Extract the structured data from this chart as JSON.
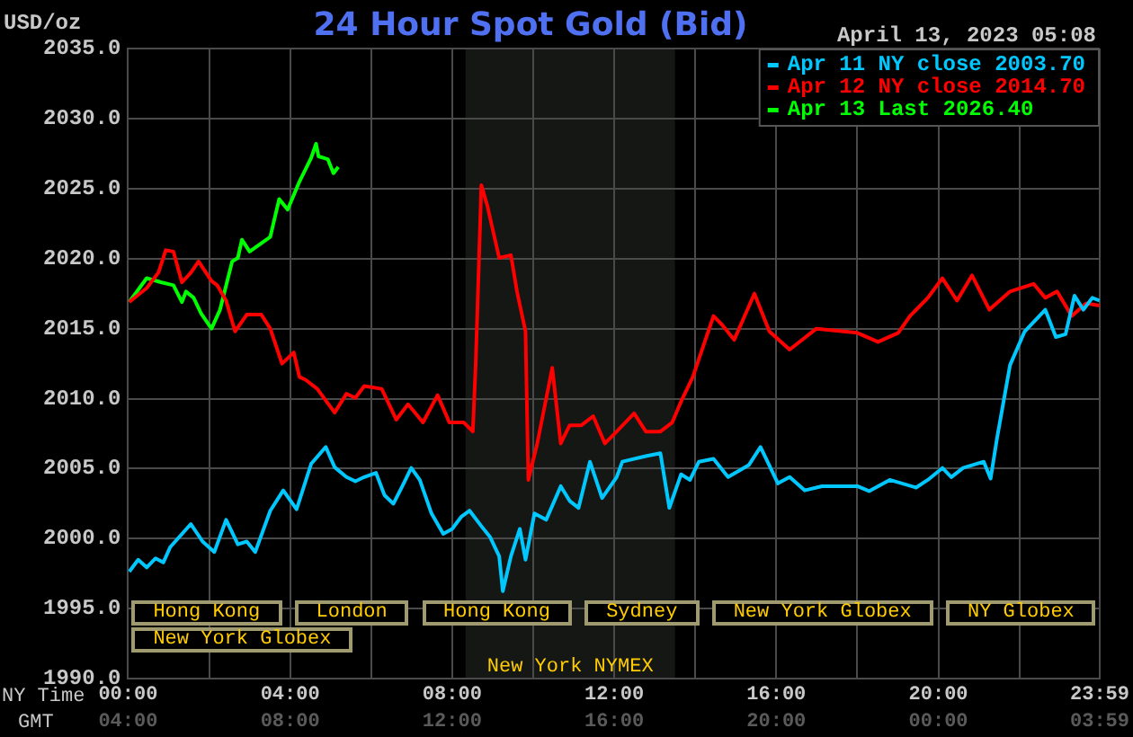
{
  "chart_data": {
    "type": "line",
    "title": "24 Hour Spot Gold (Bid)",
    "subtitle": "April 13, 2023 05:08",
    "ylabel": "USD/oz",
    "xlabel": "NY Time",
    "x2label": "GMT",
    "xlim": [
      0,
      23.983
    ],
    "ylim": [
      1990,
      2035
    ],
    "xticks": [
      {
        "value": 0,
        "label": "00:00"
      },
      {
        "value": 2,
        "label": null
      },
      {
        "value": 4,
        "label": "04:00"
      },
      {
        "value": 6,
        "label": null
      },
      {
        "value": 8,
        "label": "08:00"
      },
      {
        "value": 10,
        "label": null
      },
      {
        "value": 12,
        "label": "12:00"
      },
      {
        "value": 14,
        "label": null
      },
      {
        "value": 16,
        "label": "16:00"
      },
      {
        "value": 18,
        "label": null
      },
      {
        "value": 20,
        "label": "20:00"
      },
      {
        "value": 22,
        "label": null
      },
      {
        "value": 23.983,
        "label": "23:59"
      }
    ],
    "x2lim": [
      "2023-04-13T04:00",
      "2023-04-14T03:59"
    ],
    "x2ticks": [
      {
        "value": "2023-04-13T04:00",
        "label": "04:00"
      },
      {
        "value": "2023-04-13T08:00",
        "label": "08:00"
      },
      {
        "value": "2023-04-13T12:00",
        "label": "12:00"
      },
      {
        "value": "2023-04-13T16:00",
        "label": "16:00"
      },
      {
        "value": "2023-04-13T20:00",
        "label": "20:00"
      },
      {
        "value": "2023-04-14T00:00",
        "label": "00:00"
      },
      {
        "value": "2023-04-14T03:59",
        "label": "03:59"
      }
    ],
    "yticks": [
      {
        "value": 1990,
        "label": "1990.0"
      },
      {
        "value": 1995,
        "label": "1995.0"
      },
      {
        "value": 2000,
        "label": "2000.0"
      },
      {
        "value": 2005,
        "label": "2005.0"
      },
      {
        "value": 2010,
        "label": "2010.0"
      },
      {
        "value": 2015,
        "label": "2015.0"
      },
      {
        "value": 2020,
        "label": "2020.0"
      },
      {
        "value": 2025,
        "label": "2025.0"
      },
      {
        "value": 2030,
        "label": "2030.0"
      },
      {
        "value": 2035,
        "label": "2035.0"
      }
    ],
    "grid": true,
    "legend": "top right",
    "marker": "none",
    "line_style": "solid",
    "bands": [
      {
        "axis": "x",
        "from": 8.33,
        "to": 13.5,
        "label": "New York NYMEX",
        "color": "#141714"
      }
    ],
    "annotations": [
      "Hong Kong",
      "London",
      "Hong Kong",
      "Sydney",
      "New York Globex",
      "NY Globex",
      "New York Globex"
    ],
    "series": [
      {
        "name": "Apr 11 NY close 2003.70",
        "color": "#00c8ff",
        "x": [
          0.03,
          0.25,
          0.46,
          0.68,
          0.87,
          1.04,
          1.55,
          1.84,
          2.13,
          2.42,
          2.71,
          2.93,
          3.14,
          3.51,
          3.83,
          4.16,
          4.52,
          4.88,
          5.1,
          5.39,
          5.61,
          5.83,
          6.12,
          6.33,
          6.55,
          6.77,
          6.99,
          7.2,
          7.49,
          7.78,
          8.0,
          8.22,
          8.43,
          8.72,
          8.94,
          9.16,
          9.25,
          9.45,
          9.67,
          9.81,
          10.03,
          10.32,
          10.68,
          10.9,
          11.12,
          11.4,
          11.7,
          12.06,
          12.2,
          12.78,
          13.14,
          13.36,
          13.65,
          13.87,
          14.09,
          14.45,
          14.81,
          15.32,
          15.61,
          16.04,
          16.33,
          16.7,
          17.13,
          18.0,
          18.29,
          18.8,
          19.45,
          19.74,
          20.1,
          20.32,
          20.61,
          21.12,
          21.29,
          21.45,
          21.77,
          22.13,
          22.64,
          22.9,
          23.14,
          23.36,
          23.58,
          23.8,
          23.98
        ],
        "values": [
          1997.65,
          1998.5,
          1997.95,
          1998.6,
          1998.3,
          1999.4,
          2001.05,
          1999.8,
          1999.05,
          2001.35,
          1999.6,
          1999.8,
          1999.05,
          2002.0,
          2003.45,
          2002.1,
          2005.35,
          2006.55,
          2005.1,
          2004.4,
          2004.1,
          2004.4,
          2004.7,
          2003.1,
          2002.5,
          2003.75,
          2005.05,
          2004.2,
          2001.8,
          2000.35,
          2000.7,
          2001.55,
          2002.0,
          2000.9,
          2000.1,
          1998.75,
          1996.25,
          1998.75,
          2000.7,
          1998.5,
          2001.8,
          2001.35,
          2003.75,
          2002.7,
          2002.2,
          2005.5,
          2002.9,
          2004.4,
          2005.5,
          2005.9,
          2006.1,
          2002.2,
          2004.6,
          2004.2,
          2005.5,
          2005.7,
          2004.4,
          2005.25,
          2006.55,
          2003.95,
          2004.4,
          2003.45,
          2003.75,
          2003.75,
          2003.4,
          2004.2,
          2003.65,
          2004.2,
          2005.05,
          2004.4,
          2005.05,
          2005.5,
          2004.3,
          2007.2,
          2012.4,
          2014.8,
          2016.35,
          2014.4,
          2014.6,
          2017.35,
          2016.35,
          2017.2,
          2017.0
        ]
      },
      {
        "name": "Apr 12 NY close 2014.70",
        "color": "#ff0000",
        "x": [
          0.03,
          0.46,
          0.75,
          0.93,
          1.12,
          1.33,
          1.55,
          1.74,
          2.06,
          2.2,
          2.42,
          2.64,
          2.93,
          3.29,
          3.51,
          3.8,
          4.09,
          4.23,
          4.38,
          4.67,
          5.1,
          5.39,
          5.61,
          5.83,
          6.26,
          6.62,
          6.91,
          7.28,
          7.64,
          7.93,
          8.29,
          8.51,
          8.58,
          8.72,
          8.87,
          9.16,
          9.45,
          9.6,
          9.81,
          9.88,
          10.1,
          10.47,
          10.68,
          10.9,
          11.19,
          11.48,
          11.77,
          12.06,
          12.49,
          12.78,
          13.14,
          13.43,
          13.65,
          13.94,
          14.45,
          14.67,
          14.96,
          15.46,
          15.83,
          16.33,
          16.99,
          18.0,
          18.51,
          19.01,
          19.3,
          19.74,
          20.1,
          20.46,
          20.83,
          21.26,
          21.77,
          22.35,
          22.64,
          22.93,
          23.29,
          23.65,
          23.98
        ],
        "values": [
          2016.9,
          2017.9,
          2019.0,
          2020.6,
          2020.5,
          2018.3,
          2019.0,
          2019.8,
          2018.4,
          2018.1,
          2017.0,
          2014.8,
          2016.0,
          2016.0,
          2015.0,
          2012.5,
          2013.3,
          2011.55,
          2011.35,
          2010.7,
          2009.0,
          2010.35,
          2010.05,
          2010.9,
          2010.7,
          2008.5,
          2009.6,
          2008.3,
          2010.25,
          2008.3,
          2008.3,
          2007.65,
          2012.4,
          2025.25,
          2023.75,
          2020.05,
          2020.25,
          2017.65,
          2014.8,
          2004.2,
          2006.8,
          2012.2,
          2006.8,
          2008.1,
          2008.1,
          2008.75,
          2006.8,
          2007.65,
          2008.95,
          2007.65,
          2007.65,
          2008.3,
          2009.8,
          2011.55,
          2015.9,
          2015.25,
          2014.2,
          2017.5,
          2014.8,
          2013.5,
          2015.0,
          2014.7,
          2014.05,
          2014.7,
          2015.9,
          2017.2,
          2018.6,
          2017.0,
          2018.8,
          2016.35,
          2017.65,
          2018.2,
          2017.2,
          2017.65,
          2015.9,
          2016.8,
          2016.65
        ]
      },
      {
        "name": "Apr 13 Last 2026.40",
        "color": "#00ff00",
        "x": [
          0.03,
          0.46,
          0.83,
          1.12,
          1.33,
          1.43,
          1.62,
          1.8,
          2.06,
          2.27,
          2.57,
          2.71,
          2.81,
          3.0,
          3.29,
          3.51,
          3.73,
          3.94,
          4.23,
          4.52,
          4.64,
          4.7,
          4.93,
          5.07,
          5.19
        ],
        "values": [
          2016.9,
          2018.6,
          2018.3,
          2018.1,
          2016.9,
          2017.65,
          2017.2,
          2016.1,
          2015.0,
          2016.35,
          2019.8,
          2020.05,
          2021.35,
          2020.5,
          2021.1,
          2021.55,
          2024.25,
          2023.5,
          2025.5,
          2027.2,
          2028.2,
          2027.3,
          2027.1,
          2026.1,
          2026.55
        ]
      }
    ]
  }
}
